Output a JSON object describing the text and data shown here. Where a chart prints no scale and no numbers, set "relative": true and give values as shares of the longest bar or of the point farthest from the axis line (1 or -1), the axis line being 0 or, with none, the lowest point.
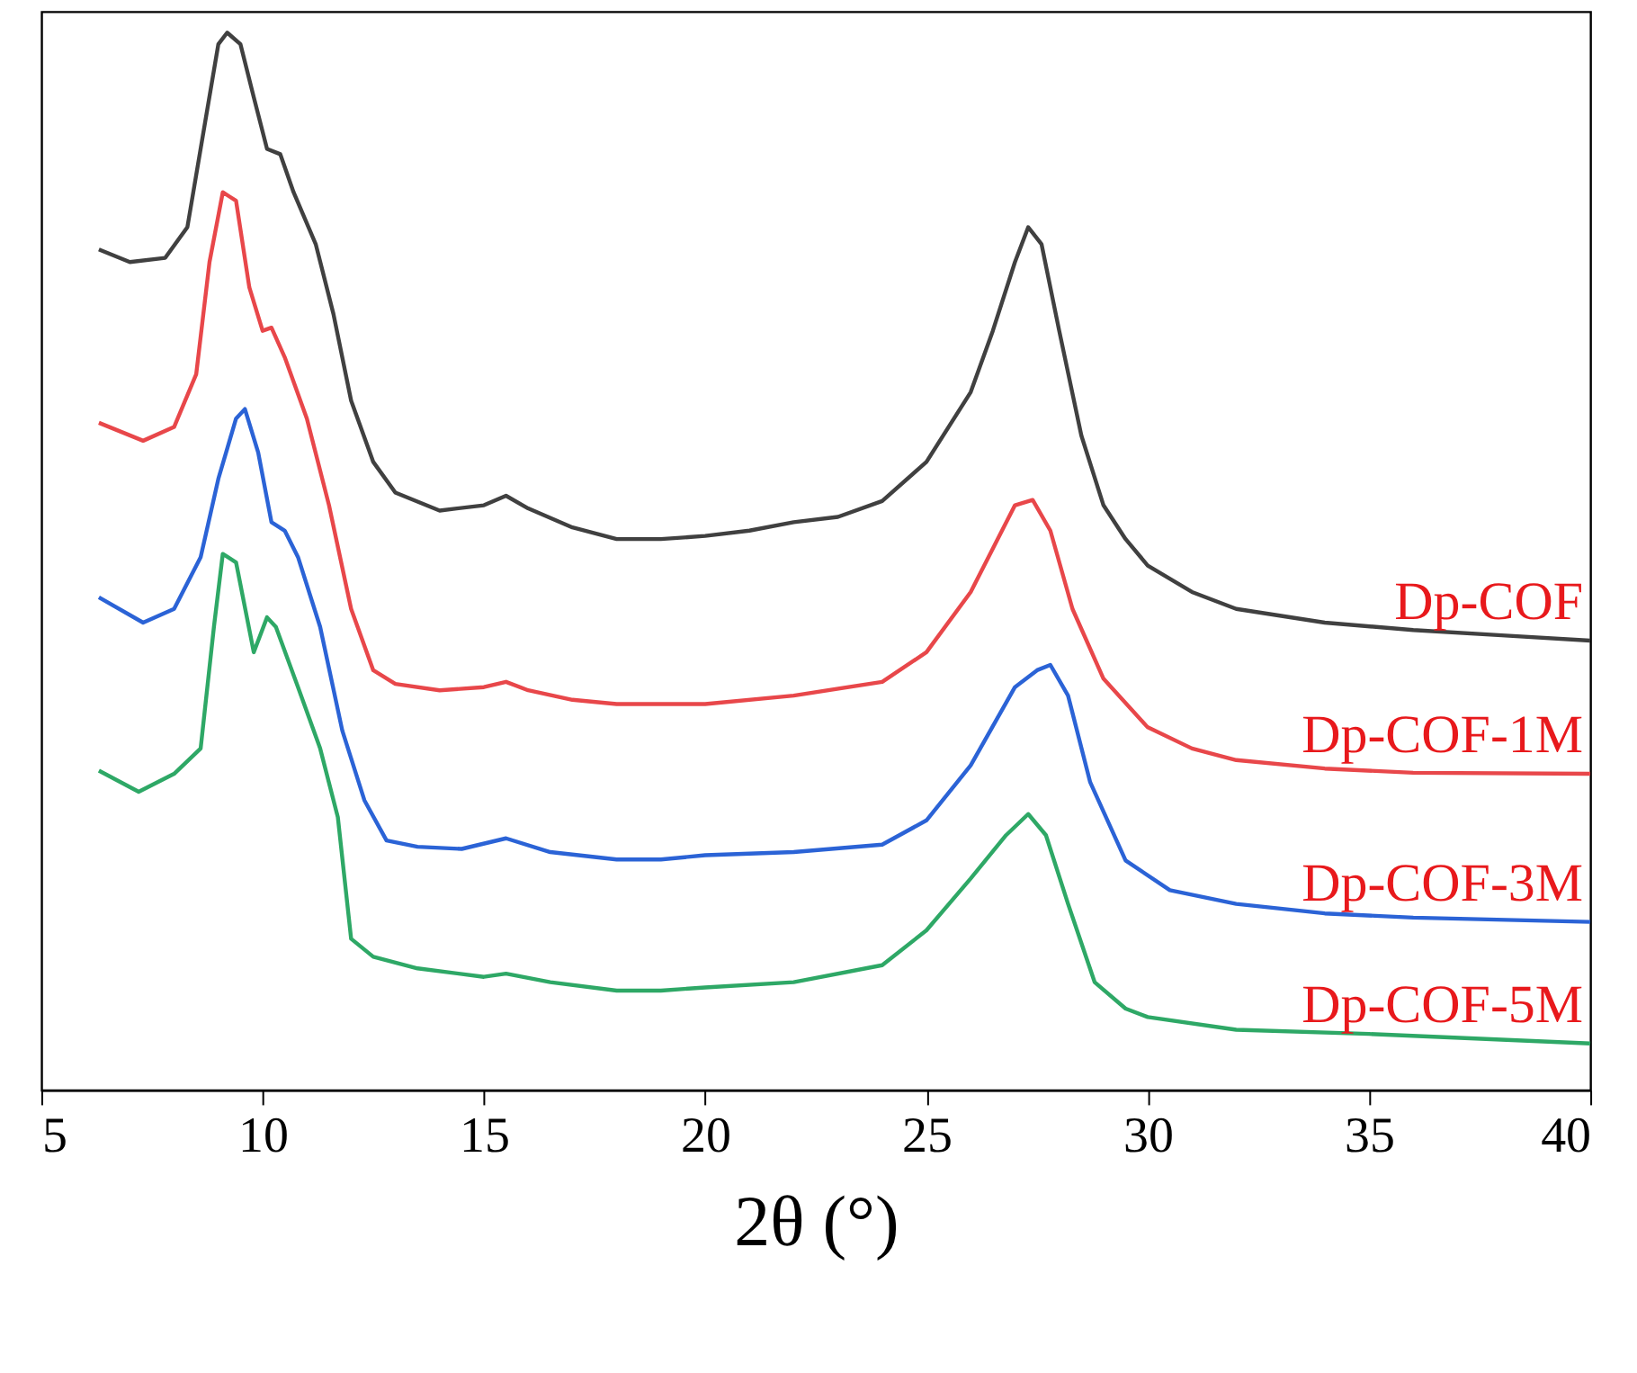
{
  "chart_data": {
    "type": "line",
    "relative": true,
    "xlabel": "2θ (°)",
    "xlim": [
      5,
      40
    ],
    "xticks": [
      5,
      10,
      15,
      20,
      25,
      30,
      35,
      40
    ],
    "grid": false,
    "marker": "none",
    "line_style": "solid",
    "series": [
      {
        "name": "Dp-COF",
        "color": "#404040",
        "x": [
          6.3,
          7,
          7.8,
          8.3,
          8.7,
          9.0,
          9.2,
          9.5,
          9.8,
          10.1,
          10.4,
          10.7,
          11.2,
          11.6,
          12.0,
          12.5,
          13,
          14,
          15,
          15.5,
          16,
          17,
          18,
          19,
          20,
          21,
          22,
          23,
          24,
          25,
          26,
          26.5,
          27,
          27.3,
          27.6,
          28,
          28.5,
          29,
          29.5,
          30,
          31,
          32,
          34,
          36,
          38,
          40
        ],
        "values": [
          0.795,
          0.783,
          0.787,
          0.816,
          0.915,
          0.989,
          1.0,
          0.989,
          0.939,
          0.89,
          0.885,
          0.849,
          0.8,
          0.734,
          0.652,
          0.594,
          0.565,
          0.548,
          0.553,
          0.562,
          0.55,
          0.532,
          0.521,
          0.521,
          0.524,
          0.529,
          0.537,
          0.542,
          0.557,
          0.594,
          0.66,
          0.718,
          0.783,
          0.816,
          0.8,
          0.718,
          0.619,
          0.553,
          0.521,
          0.496,
          0.471,
          0.455,
          0.442,
          0.435,
          0.43,
          0.425
        ]
      },
      {
        "name": "Dp-COF-1M",
        "color": "#e8474a",
        "x": [
          6.3,
          7.3,
          8,
          8.5,
          8.8,
          9.1,
          9.4,
          9.7,
          10.0,
          10.2,
          10.5,
          11,
          11.5,
          12,
          12.5,
          13,
          14,
          15,
          15.5,
          16,
          17,
          18,
          19,
          20,
          22,
          24,
          25,
          26,
          26.5,
          27,
          27.4,
          27.8,
          28.3,
          29,
          30,
          31,
          32,
          34,
          36,
          40
        ],
        "values": [
          0.631,
          0.614,
          0.627,
          0.677,
          0.783,
          0.849,
          0.841,
          0.759,
          0.718,
          0.721,
          0.693,
          0.635,
          0.553,
          0.455,
          0.397,
          0.384,
          0.378,
          0.381,
          0.386,
          0.378,
          0.369,
          0.365,
          0.365,
          0.365,
          0.373,
          0.386,
          0.414,
          0.471,
          0.512,
          0.553,
          0.558,
          0.529,
          0.455,
          0.389,
          0.343,
          0.323,
          0.312,
          0.304,
          0.3,
          0.299
        ]
      },
      {
        "name": "Dp-COF-3M",
        "color": "#2b63d6",
        "x": [
          6.3,
          7.3,
          8,
          8.6,
          9.0,
          9.4,
          9.6,
          9.9,
          10.2,
          10.5,
          10.8,
          11.3,
          11.8,
          12.3,
          12.8,
          13.5,
          14.5,
          15.5,
          16.5,
          18,
          19,
          20,
          22,
          24,
          25,
          26,
          27,
          27.5,
          27.8,
          28.2,
          28.7,
          29.5,
          30.5,
          32,
          34,
          36,
          40
        ],
        "values": [
          0.466,
          0.442,
          0.455,
          0.504,
          0.578,
          0.635,
          0.644,
          0.603,
          0.537,
          0.529,
          0.504,
          0.438,
          0.34,
          0.274,
          0.236,
          0.23,
          0.228,
          0.238,
          0.225,
          0.218,
          0.218,
          0.222,
          0.225,
          0.232,
          0.255,
          0.307,
          0.381,
          0.397,
          0.402,
          0.373,
          0.291,
          0.217,
          0.189,
          0.176,
          0.167,
          0.163,
          0.159
        ]
      },
      {
        "name": "Dp-COF-5M",
        "color": "#2ea866",
        "x": [
          6.3,
          7.2,
          8,
          8.6,
          8.9,
          9.1,
          9.4,
          9.8,
          10.1,
          10.3,
          10.8,
          11.3,
          11.7,
          12.0,
          12.5,
          13.5,
          15,
          15.5,
          16.5,
          18,
          19,
          20,
          22,
          24,
          25,
          26,
          26.8,
          27.3,
          27.7,
          28.2,
          28.8,
          29.5,
          30,
          32,
          35,
          40
        ],
        "values": [
          0.302,
          0.282,
          0.299,
          0.323,
          0.438,
          0.507,
          0.499,
          0.414,
          0.447,
          0.438,
          0.381,
          0.323,
          0.258,
          0.143,
          0.126,
          0.115,
          0.107,
          0.11,
          0.102,
          0.094,
          0.094,
          0.097,
          0.102,
          0.118,
          0.151,
          0.2,
          0.241,
          0.261,
          0.241,
          0.176,
          0.102,
          0.077,
          0.069,
          0.057,
          0.053,
          0.044
        ]
      }
    ]
  }
}
